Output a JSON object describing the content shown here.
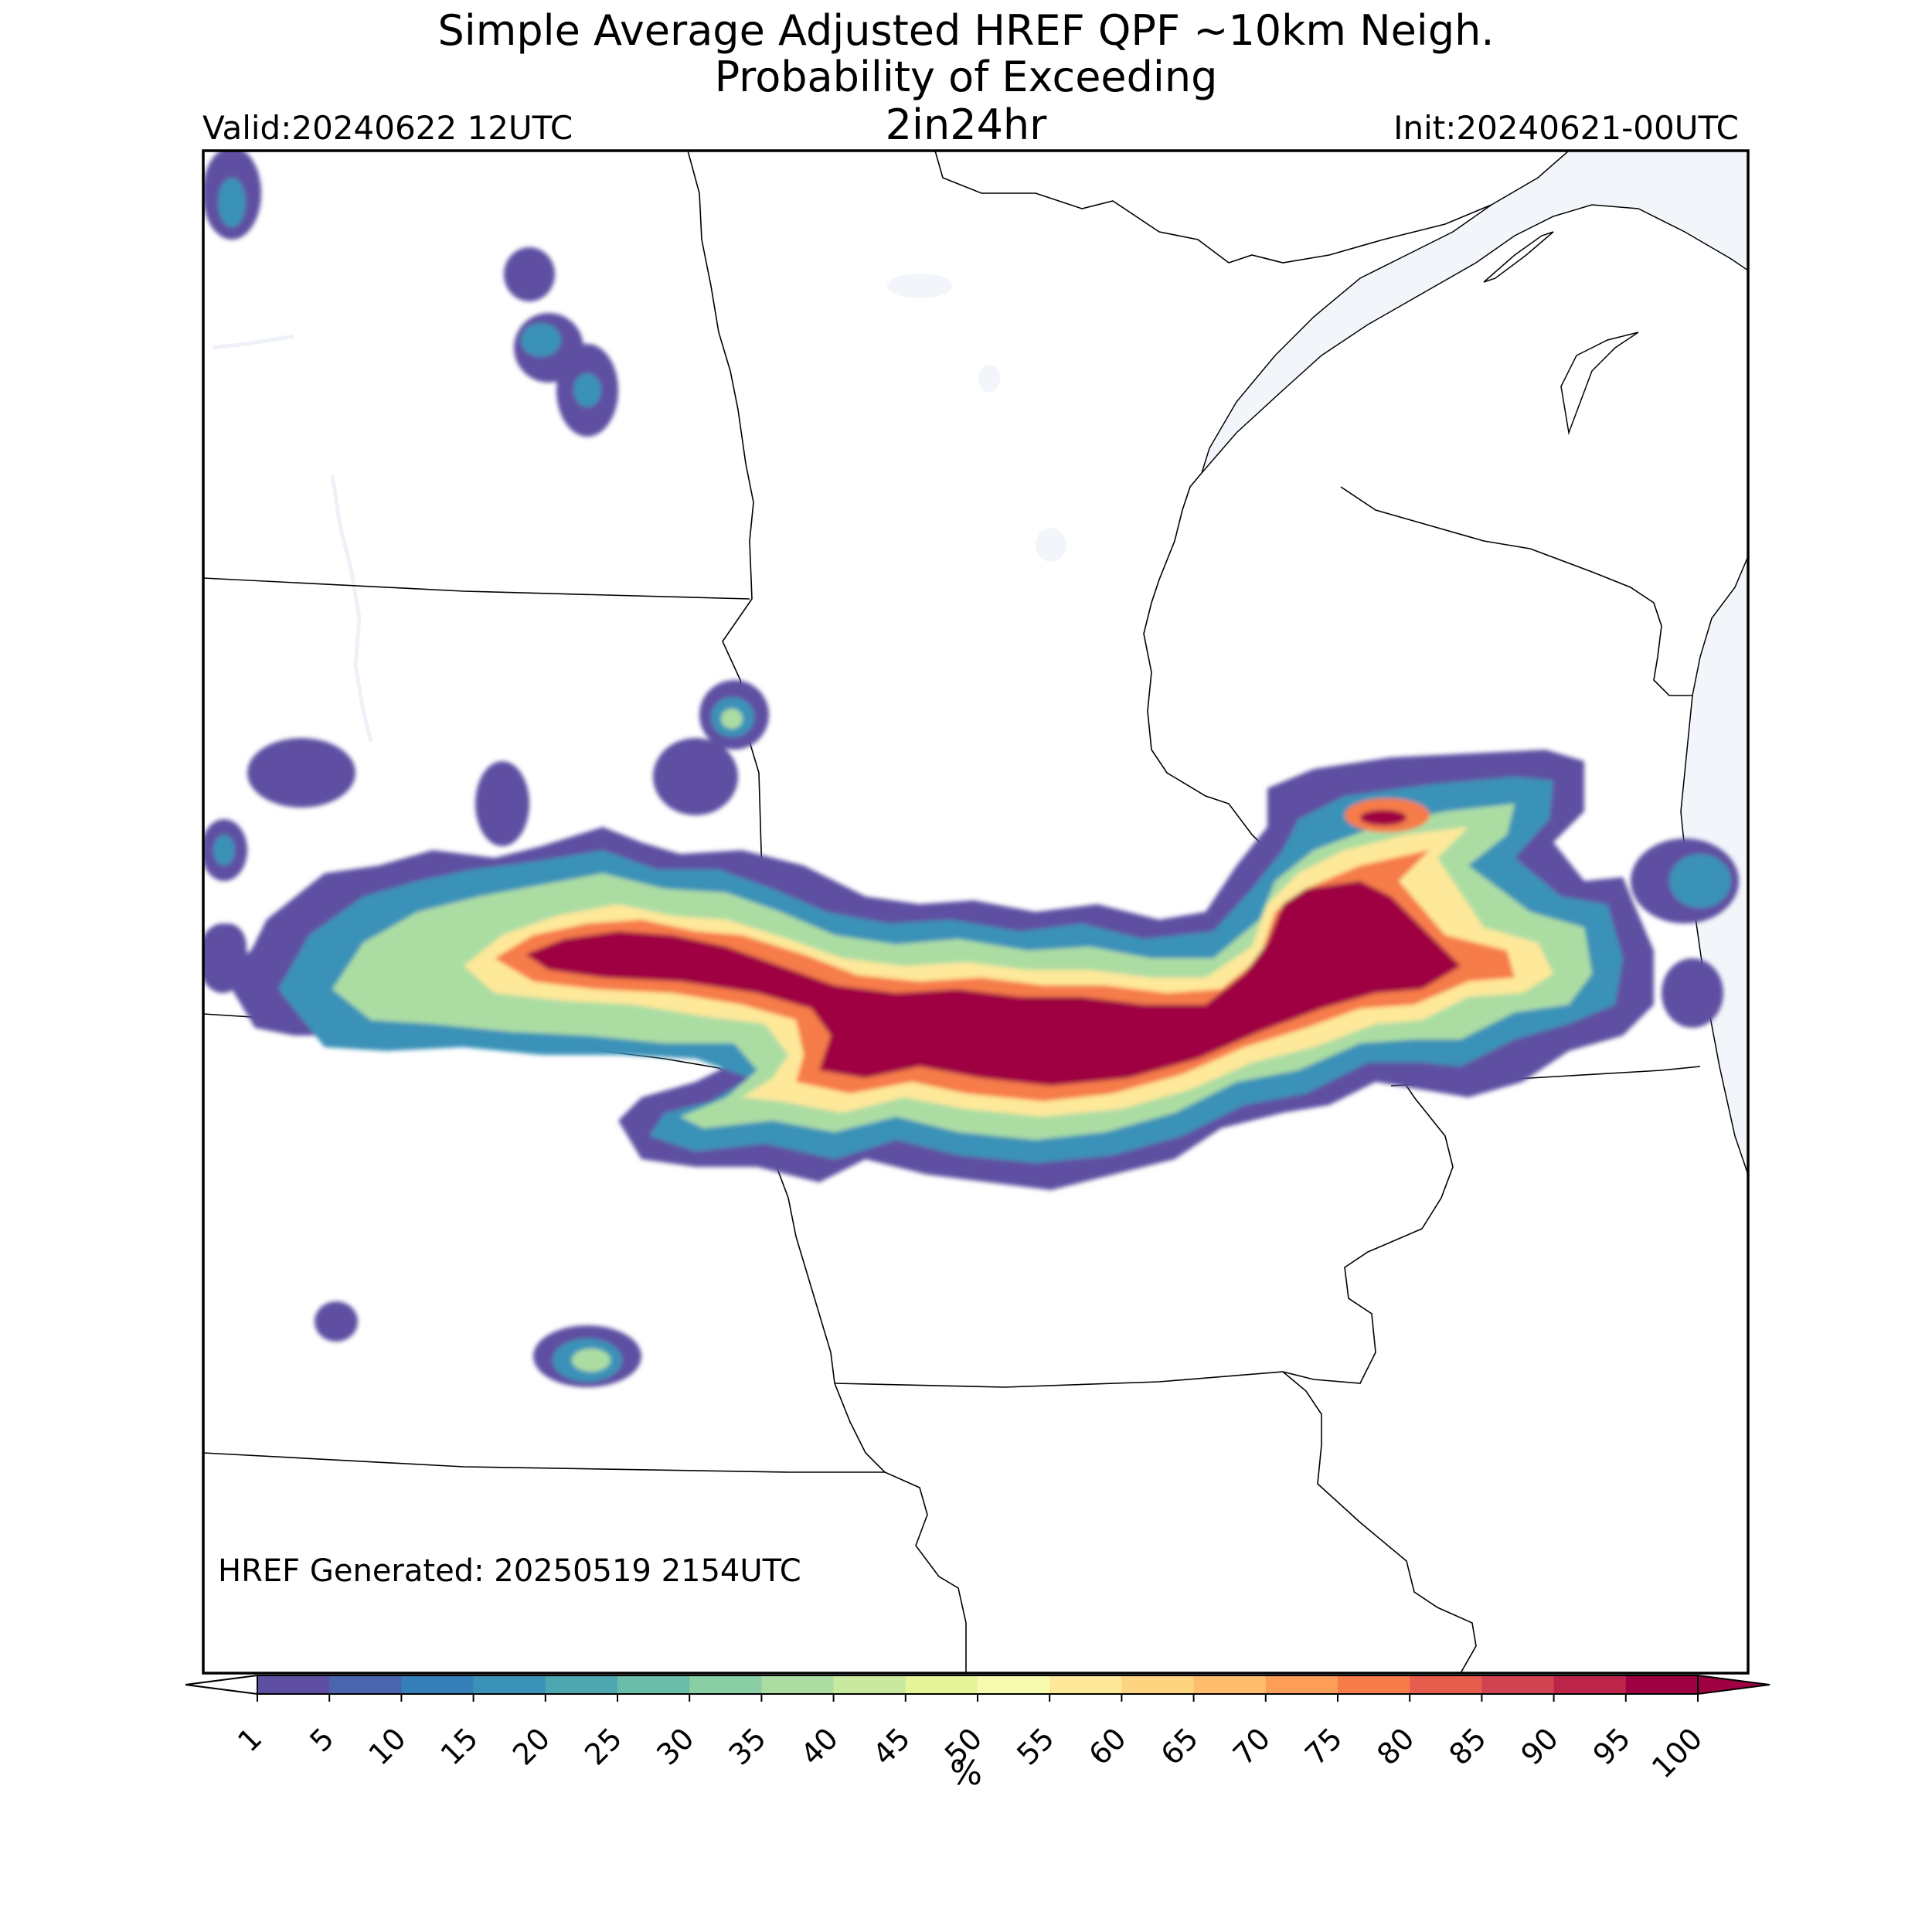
{
  "header": {
    "title_line1": "Simple Average Adjusted HREF QPF ~10km Neigh.",
    "title_line2": "Probability of Exceeding",
    "title_line3": "2in24hr",
    "valid": "Valid:20240622 12UTC",
    "init": "Init:20240621-00UTC"
  },
  "map": {
    "generated": "HREF Generated: 20250519 2154UTC",
    "water_color": "#f2f6fb",
    "land_color": "#ffffff",
    "border_color": "#000000"
  },
  "colorbar": {
    "units": "%",
    "ticks": [
      "1",
      "5",
      "10",
      "15",
      "20",
      "25",
      "30",
      "35",
      "40",
      "45",
      "50",
      "55",
      "60",
      "65",
      "70",
      "75",
      "80",
      "85",
      "90",
      "95",
      "100"
    ],
    "colors": [
      "#5e4fa2",
      "#4a64ad",
      "#3680b9",
      "#3b92b8",
      "#4ea6b0",
      "#69bca8",
      "#89cea4",
      "#abdda3",
      "#c9e99e",
      "#e6f598",
      "#f7fbad",
      "#fee89a",
      "#fdd47f",
      "#fdbd6c",
      "#fc9d58",
      "#f67c4a",
      "#e65d4e",
      "#d24352",
      "#bc2449",
      "#9e0142"
    ],
    "over_color": "#9e0142",
    "under_color": "#ffffff"
  }
}
